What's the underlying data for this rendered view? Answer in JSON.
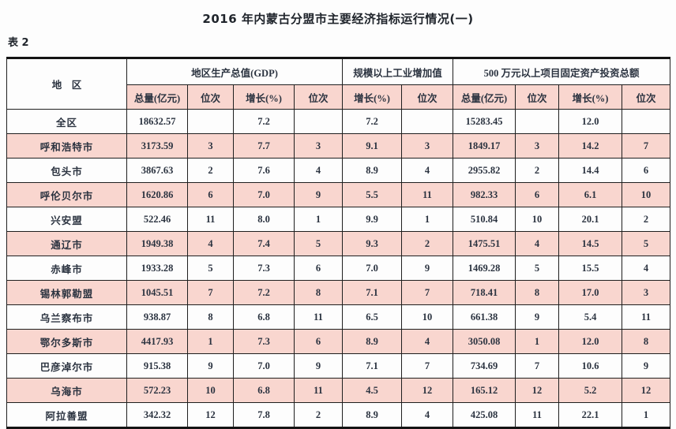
{
  "page": {
    "title": "2016 年内蒙古分盟市主要经济指标运行情况(一)",
    "table_label": "表 2"
  },
  "table": {
    "region_header": "地　区",
    "groups": [
      {
        "label": "地区生产总值(GDP)",
        "cols": [
          "总量(亿元)",
          "位次",
          "增长(%)",
          "位次"
        ]
      },
      {
        "label": "规模以上工业增加值",
        "cols": [
          "增长(%)",
          "位次"
        ]
      },
      {
        "label": "500 万元以上项目固定资产投资总额",
        "cols": [
          "总量(亿元)",
          "位次",
          "增长(%)",
          "位次"
        ]
      }
    ],
    "rows": [
      {
        "region": "全区",
        "values": [
          "18632.57",
          "",
          "7.2",
          "",
          "7.2",
          "",
          "15283.45",
          "",
          "12.0",
          ""
        ]
      },
      {
        "region": "呼和浩特市",
        "values": [
          "3173.59",
          "3",
          "7.7",
          "3",
          "9.1",
          "3",
          "1849.17",
          "3",
          "14.2",
          "7"
        ]
      },
      {
        "region": "包头市",
        "values": [
          "3867.63",
          "2",
          "7.6",
          "4",
          "8.9",
          "4",
          "2955.82",
          "2",
          "14.4",
          "6"
        ]
      },
      {
        "region": "呼伦贝尔市",
        "values": [
          "1620.86",
          "6",
          "7.0",
          "9",
          "5.5",
          "11",
          "982.33",
          "6",
          "6.1",
          "10"
        ]
      },
      {
        "region": "兴安盟",
        "values": [
          "522.46",
          "11",
          "8.0",
          "1",
          "9.9",
          "1",
          "510.84",
          "10",
          "20.1",
          "2"
        ]
      },
      {
        "region": "通辽市",
        "values": [
          "1949.38",
          "4",
          "7.4",
          "5",
          "9.3",
          "2",
          "1475.51",
          "4",
          "14.5",
          "5"
        ]
      },
      {
        "region": "赤峰市",
        "values": [
          "1933.28",
          "5",
          "7.3",
          "6",
          "7.0",
          "9",
          "1469.28",
          "5",
          "15.5",
          "4"
        ]
      },
      {
        "region": "锡林郭勒盟",
        "values": [
          "1045.51",
          "7",
          "7.2",
          "8",
          "7.1",
          "7",
          "718.41",
          "8",
          "17.0",
          "3"
        ]
      },
      {
        "region": "乌兰察布市",
        "values": [
          "938.87",
          "8",
          "6.8",
          "11",
          "6.5",
          "10",
          "661.38",
          "9",
          "5.4",
          "11"
        ]
      },
      {
        "region": "鄂尔多斯市",
        "values": [
          "4417.93",
          "1",
          "7.3",
          "6",
          "8.9",
          "4",
          "3050.08",
          "1",
          "12.0",
          "8"
        ]
      },
      {
        "region": "巴彦淖尔市",
        "values": [
          "915.38",
          "9",
          "7.0",
          "9",
          "7.1",
          "7",
          "734.69",
          "7",
          "10.6",
          "9"
        ]
      },
      {
        "region": "乌海市",
        "values": [
          "572.23",
          "10",
          "6.8",
          "11",
          "4.5",
          "12",
          "165.12",
          "12",
          "5.2",
          "12"
        ]
      },
      {
        "region": "阿拉善盟",
        "values": [
          "342.32",
          "12",
          "7.8",
          "2",
          "8.9",
          "4",
          "425.08",
          "11",
          "22.1",
          "1"
        ]
      }
    ],
    "colors": {
      "row_highlight": "#f9d6cf",
      "border": "#1f1f1f",
      "text": "#2b3340"
    }
  }
}
